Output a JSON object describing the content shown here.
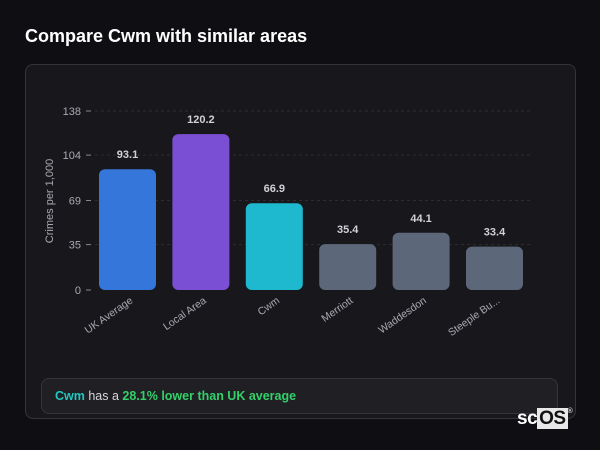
{
  "title": "Compare Cwm with similar areas",
  "chart_data": {
    "type": "bar",
    "ylabel": "Crimes per 1,000",
    "xlabel": "",
    "ylim": [
      0,
      138
    ],
    "yticks": [
      0,
      35,
      69,
      104,
      138
    ],
    "grid": true,
    "categories": [
      "UK Average",
      "Local Area",
      "Cwm",
      "Merriott",
      "Waddesdon",
      "Steeple Bu..."
    ],
    "values": [
      93.1,
      120.2,
      66.9,
      35.4,
      44.1,
      33.4
    ],
    "value_labels": [
      "93.1",
      "120.2",
      "66.9",
      "35.4",
      "44.1",
      "33.4"
    ],
    "colors": [
      "#3576db",
      "#7b4fd3",
      "#1fb9cf",
      "#5c6779",
      "#5c6779",
      "#5c6779"
    ]
  },
  "summary": {
    "place": "Cwm",
    "connector": " has a ",
    "highlight": "28.1% lower than UK average"
  },
  "logo": {
    "text_a": "sc",
    "text_b": "OS",
    "mark": "®"
  }
}
